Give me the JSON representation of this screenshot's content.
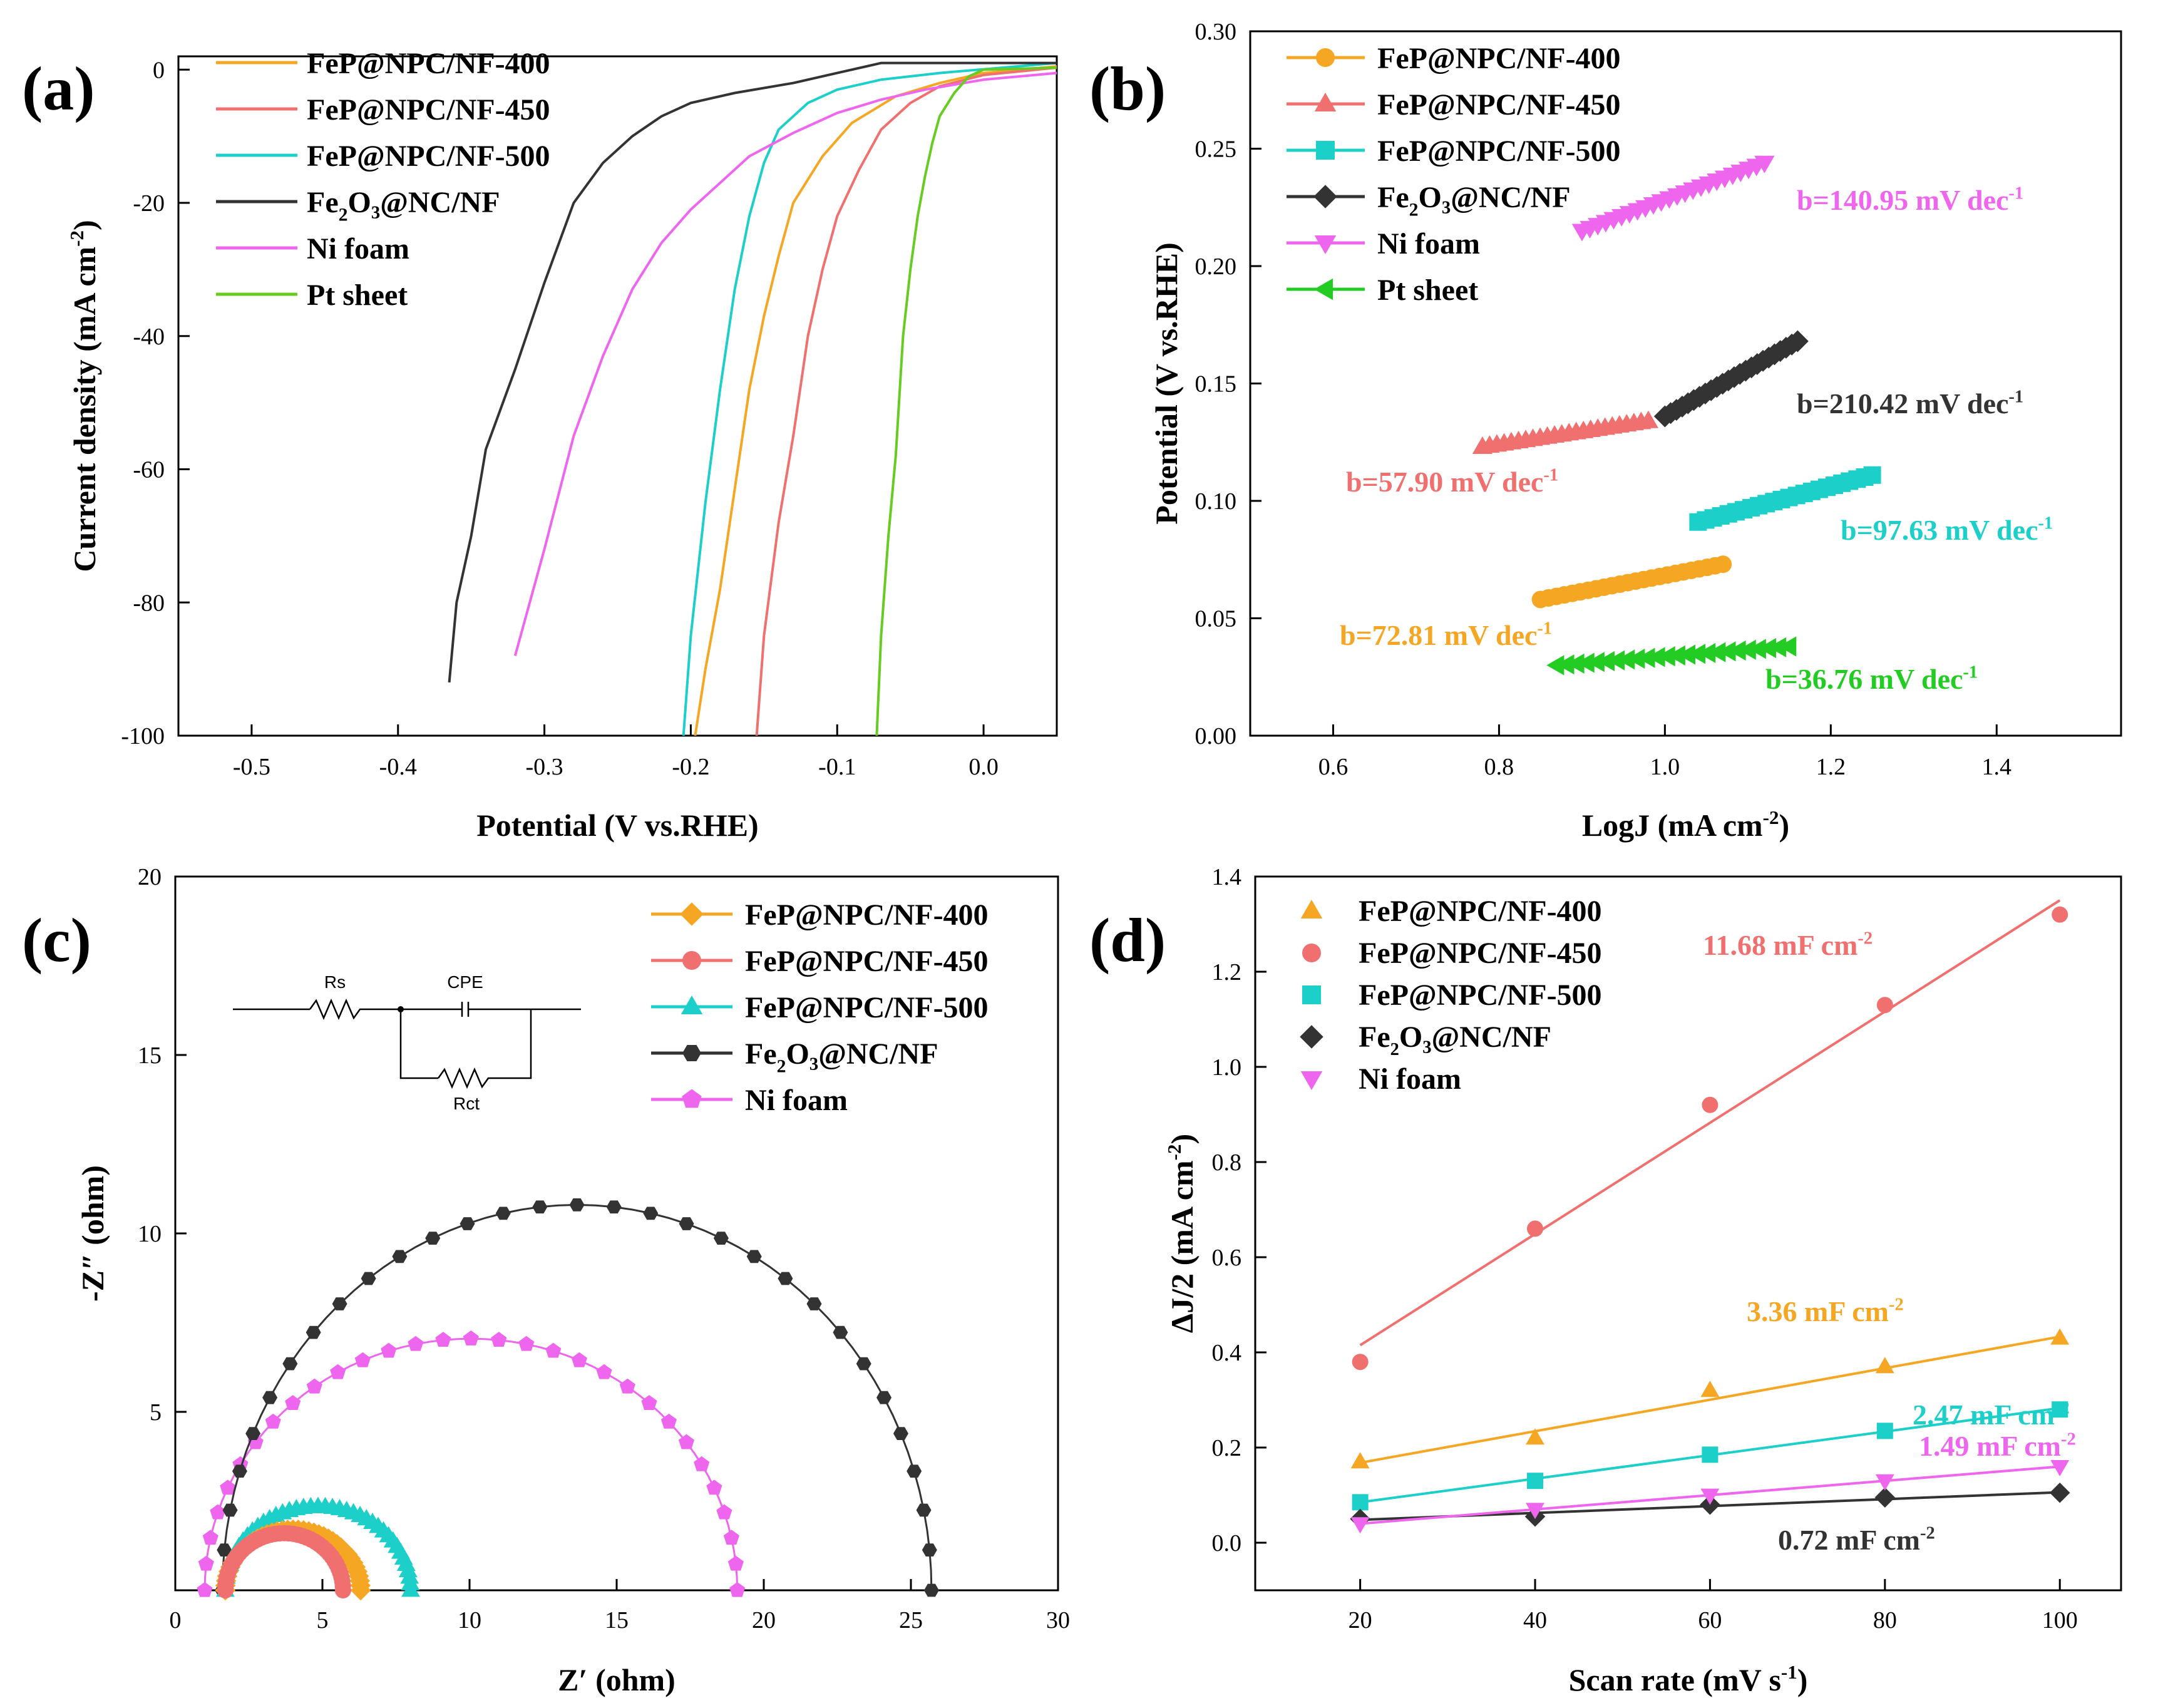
{
  "chart_data": [
    {
      "panel": "(a)",
      "type": "line",
      "xlabel": "Potential (V vs.RHE)",
      "ylabel": "Current density (mA cm⁻²)",
      "xlim": [
        -0.55,
        0.05
      ],
      "ylim": [
        -100,
        2
      ],
      "xticks": [
        "-0.5",
        "-0.4",
        "-0.3",
        "-0.2",
        "-0.1",
        "0.0"
      ],
      "yticks": [
        "0",
        "-20",
        "-40",
        "-60",
        "-80",
        "-100"
      ],
      "legend_position": "top-left",
      "series": [
        {
          "name": "FeP@NPC/NF-400",
          "color": "#f5a623",
          "points": [
            [
              -0.197,
              -100
            ],
            [
              -0.19,
              -90
            ],
            [
              -0.18,
              -78
            ],
            [
              -0.17,
              -63
            ],
            [
              -0.16,
              -48
            ],
            [
              -0.15,
              -37
            ],
            [
              -0.14,
              -28
            ],
            [
              -0.13,
              -20
            ],
            [
              -0.11,
              -13
            ],
            [
              -0.09,
              -8
            ],
            [
              -0.06,
              -4
            ],
            [
              -0.03,
              -2
            ],
            [
              0.0,
              -0.5
            ],
            [
              0.05,
              0.5
            ]
          ]
        },
        {
          "name": "FeP@NPC/NF-450",
          "color": "#f07070",
          "points": [
            [
              -0.155,
              -100
            ],
            [
              -0.15,
              -85
            ],
            [
              -0.14,
              -68
            ],
            [
              -0.13,
              -55
            ],
            [
              -0.12,
              -40
            ],
            [
              -0.11,
              -30
            ],
            [
              -0.1,
              -22
            ],
            [
              -0.085,
              -15
            ],
            [
              -0.07,
              -9
            ],
            [
              -0.05,
              -5
            ],
            [
              -0.03,
              -2.5
            ],
            [
              0.0,
              -0.8
            ],
            [
              0.05,
              0.3
            ]
          ]
        },
        {
          "name": "FeP@NPC/NF-500",
          "color": "#1ccfc9",
          "points": [
            [
              -0.205,
              -100
            ],
            [
              -0.2,
              -85
            ],
            [
              -0.19,
              -65
            ],
            [
              -0.18,
              -48
            ],
            [
              -0.17,
              -33
            ],
            [
              -0.16,
              -22
            ],
            [
              -0.15,
              -14
            ],
            [
              -0.14,
              -9
            ],
            [
              -0.12,
              -5
            ],
            [
              -0.1,
              -3
            ],
            [
              -0.07,
              -1.5
            ],
            [
              -0.03,
              -0.5
            ],
            [
              0.05,
              1
            ]
          ]
        },
        {
          "name": "Fe₂O₃@NC/NF",
          "color": "#333333",
          "points": [
            [
              -0.365,
              -92
            ],
            [
              -0.36,
              -80
            ],
            [
              -0.35,
              -70
            ],
            [
              -0.34,
              -57
            ],
            [
              -0.32,
              -45
            ],
            [
              -0.3,
              -32
            ],
            [
              -0.28,
              -20
            ],
            [
              -0.26,
              -14
            ],
            [
              -0.24,
              -10
            ],
            [
              -0.22,
              -7
            ],
            [
              -0.2,
              -5
            ],
            [
              -0.17,
              -3.5
            ],
            [
              -0.13,
              -2
            ],
            [
              -0.1,
              -0.5
            ],
            [
              -0.07,
              1
            ],
            [
              0.05,
              1
            ]
          ]
        },
        {
          "name": "Ni foam",
          "color": "#ee66ee",
          "points": [
            [
              -0.32,
              -88
            ],
            [
              -0.3,
              -72
            ],
            [
              -0.28,
              -55
            ],
            [
              -0.26,
              -43
            ],
            [
              -0.24,
              -33
            ],
            [
              -0.22,
              -26
            ],
            [
              -0.2,
              -21
            ],
            [
              -0.18,
              -17
            ],
            [
              -0.16,
              -13
            ],
            [
              -0.13,
              -9.5
            ],
            [
              -0.1,
              -6.5
            ],
            [
              -0.07,
              -4.5
            ],
            [
              -0.04,
              -3
            ],
            [
              0.0,
              -1.5
            ],
            [
              0.05,
              -0.5
            ]
          ]
        },
        {
          "name": "Pt sheet",
          "color": "#66cc22",
          "points": [
            [
              -0.073,
              -100
            ],
            [
              -0.07,
              -85
            ],
            [
              -0.065,
              -70
            ],
            [
              -0.06,
              -58
            ],
            [
              -0.055,
              -40
            ],
            [
              -0.05,
              -30
            ],
            [
              -0.045,
              -22
            ],
            [
              -0.04,
              -16
            ],
            [
              -0.035,
              -11
            ],
            [
              -0.03,
              -7
            ],
            [
              -0.02,
              -3.5
            ],
            [
              -0.01,
              -1
            ],
            [
              0.0,
              0
            ],
            [
              0.05,
              0.3
            ]
          ]
        }
      ]
    },
    {
      "panel": "(b)",
      "type": "scatter",
      "xlabel": "LogJ (mA cm⁻²)",
      "ylabel": "Potential (V vs.RHE)",
      "xlim": [
        0.5,
        1.55
      ],
      "ylim": [
        0,
        0.3
      ],
      "xticks": [
        "0.6",
        "0.8",
        "1.0",
        "1.2",
        "1.4"
      ],
      "yticks": [
        "0.00",
        "0.05",
        "0.10",
        "0.15",
        "0.20",
        "0.25",
        "0.30"
      ],
      "legend_position": "top-left",
      "series": [
        {
          "name": "FeP@NPC/NF-400",
          "color": "#f5a623",
          "marker": "circle",
          "x_range": [
            0.85,
            1.07
          ],
          "y_range": [
            0.058,
            0.073
          ],
          "label": "b=72.81 mV dec⁻¹"
        },
        {
          "name": "FeP@NPC/NF-450",
          "color": "#f07070",
          "marker": "triangle-up",
          "x_range": [
            0.78,
            0.98
          ],
          "y_range": [
            0.123,
            0.134
          ],
          "label": "b=57.90 mV dec⁻¹"
        },
        {
          "name": "FeP@NPC/NF-500",
          "color": "#1ccfc9",
          "marker": "square",
          "x_range": [
            1.04,
            1.25
          ],
          "y_range": [
            0.091,
            0.111
          ],
          "label": "b=97.63 mV dec⁻¹"
        },
        {
          "name": "Fe₂O₃@NC/NF",
          "color": "#333333",
          "marker": "diamond",
          "x_range": [
            1.0,
            1.16
          ],
          "y_range": [
            0.136,
            0.168
          ],
          "label": "b=210.42 mV dec⁻¹"
        },
        {
          "name": "Ni foam",
          "color": "#ee66ee",
          "marker": "triangle-down",
          "x_range": [
            0.9,
            1.12
          ],
          "y_range": [
            0.215,
            0.244
          ],
          "label": "b=140.95 mV dec⁻¹"
        },
        {
          "name": "Pt sheet",
          "color": "#22cc22",
          "marker": "triangle-left",
          "x_range": [
            0.87,
            1.15
          ],
          "y_range": [
            0.03,
            0.038
          ],
          "label": "b=36.76 mV dec⁻¹"
        }
      ]
    },
    {
      "panel": "(c)",
      "type": "scatter",
      "xlabel": "Z′ (ohm)",
      "ylabel": "-Z″ (ohm)",
      "xlim": [
        0,
        30
      ],
      "ylim": [
        0,
        20
      ],
      "xticks": [
        "0",
        "5",
        "10",
        "15",
        "20",
        "25",
        "30"
      ],
      "yticks": [
        "5",
        "10",
        "15",
        "20"
      ],
      "legend_position": "top-right",
      "circuit": {
        "rs": "Rs",
        "cpe": "CPE",
        "rct": "Rct"
      },
      "series": [
        {
          "name": "FeP@NPC/NF-400",
          "color": "#f5a623",
          "marker": "diamond",
          "rs": 1.7,
          "rct": 4.6
        },
        {
          "name": "FeP@NPC/NF-450",
          "color": "#f07070",
          "marker": "circle",
          "rs": 1.7,
          "rct": 4.0
        },
        {
          "name": "FeP@NPC/NF-500",
          "color": "#1ccfc9",
          "marker": "triangle-up",
          "rs": 1.7,
          "rct": 6.3
        },
        {
          "name": "Fe₂O₃@NC/NF",
          "color": "#333333",
          "marker": "hexagon",
          "rs": 1.6,
          "rct": 24.1
        },
        {
          "name": "Ni foam",
          "color": "#ee66ee",
          "marker": "pentagon",
          "rs": 1.0,
          "rct": 18.1
        }
      ]
    },
    {
      "panel": "(d)",
      "type": "scatter",
      "xlabel": "Scan rate (mV s⁻¹)",
      "ylabel": "ΔJ/2 (mA cm⁻²)",
      "xlim": [
        8,
        107
      ],
      "ylim": [
        -0.1,
        1.4
      ],
      "xticks": [
        "20",
        "40",
        "60",
        "80",
        "100"
      ],
      "yticks": [
        "0.0",
        "0.2",
        "0.4",
        "0.6",
        "0.8",
        "1.0",
        "1.2",
        "1.4"
      ],
      "legend_position": "top-left",
      "x": [
        20,
        40,
        60,
        80,
        100
      ],
      "series": [
        {
          "name": "FeP@NPC/NF-400",
          "color": "#f5a623",
          "marker": "triangle-up",
          "values": [
            0.17,
            0.22,
            0.32,
            0.37,
            0.43
          ],
          "fit": [
            0.168,
            0.433
          ],
          "label": "3.36 mF cm⁻²"
        },
        {
          "name": "FeP@NPC/NF-450",
          "color": "#f07070",
          "marker": "circle",
          "values": [
            0.38,
            0.66,
            0.92,
            1.13,
            1.32
          ],
          "fit": [
            0.415,
            1.35
          ],
          "label": "11.68 mF cm⁻²"
        },
        {
          "name": "FeP@NPC/NF-500",
          "color": "#1ccfc9",
          "marker": "square",
          "values": [
            0.085,
            0.13,
            0.185,
            0.235,
            0.28
          ],
          "fit": [
            0.085,
            0.283
          ],
          "label": "2.47 mF cm⁻²"
        },
        {
          "name": "Fe₂O₃@NC/NF",
          "color": "#333333",
          "marker": "diamond",
          "values": [
            0.05,
            0.055,
            0.08,
            0.095,
            0.105
          ],
          "fit": [
            0.048,
            0.106
          ],
          "label": "0.72 mF cm⁻²"
        },
        {
          "name": "Ni foam",
          "color": "#ee66ee",
          "marker": "triangle-down",
          "values": [
            0.04,
            0.07,
            0.1,
            0.13,
            0.16
          ],
          "fit": [
            0.04,
            0.16
          ],
          "label": "1.49 mF cm⁻²"
        }
      ]
    }
  ]
}
